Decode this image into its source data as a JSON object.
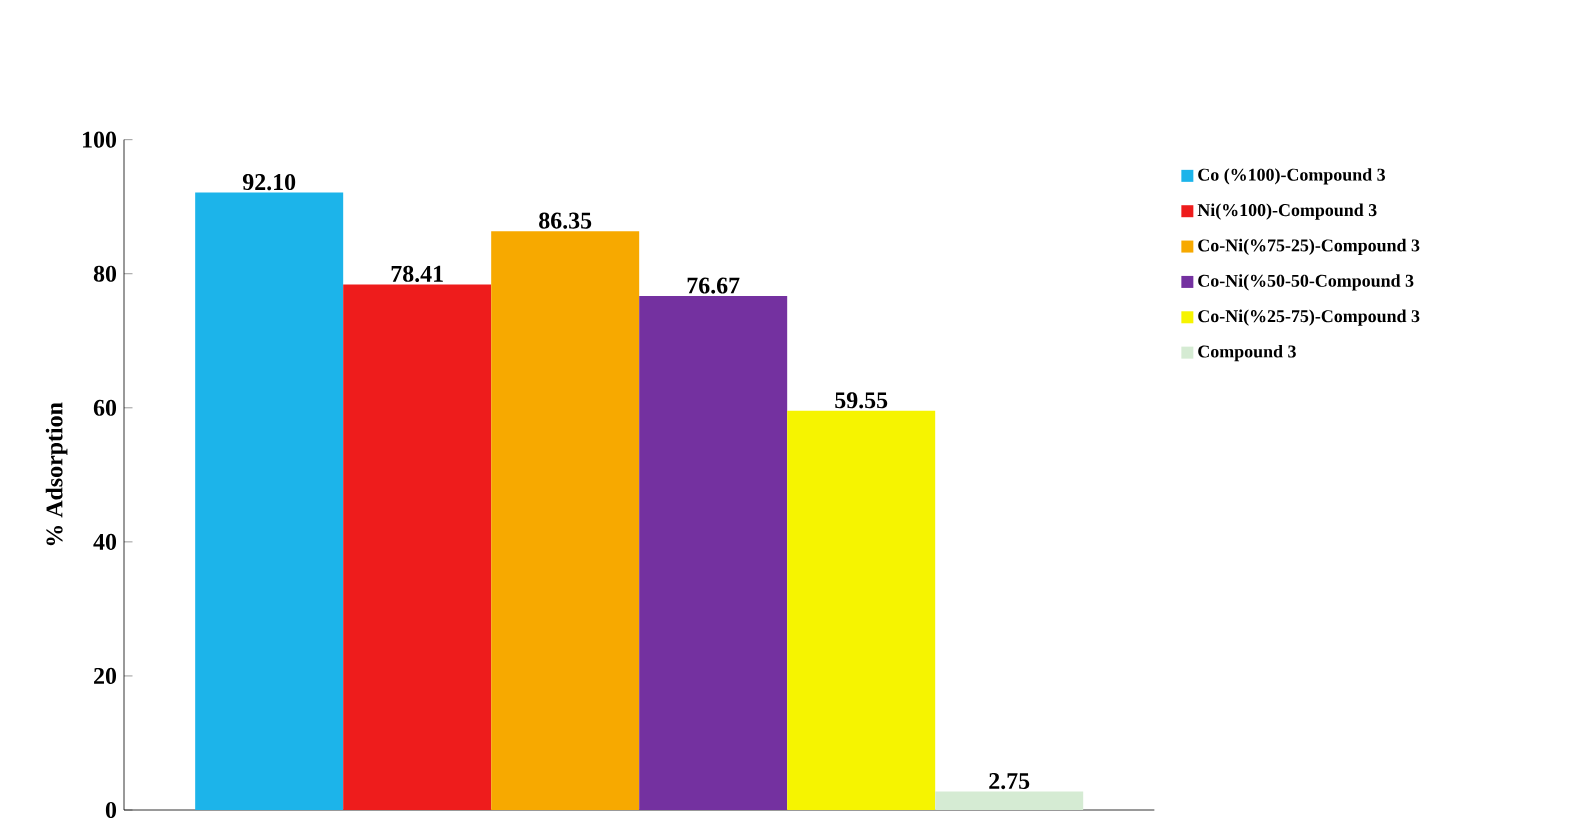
{
  "chart_data": {
    "type": "bar",
    "ylabel": "% Adsorption",
    "categories": [
      null
    ],
    "series": [
      {
        "name": "Co (%100)-Compound 3",
        "color": "#1cb4ea",
        "values": [
          92.1
        ],
        "value_labels": [
          "92.10"
        ]
      },
      {
        "name": "Ni(%100)-Compound 3",
        "color": "#ee1c1c",
        "values": [
          78.41
        ],
        "value_labels": [
          "78.41"
        ]
      },
      {
        "name": "Co-Ni(%75-25)-Compound 3",
        "color": "#f7a900",
        "values": [
          86.35
        ],
        "value_labels": [
          "86.35"
        ]
      },
      {
        "name": "Co-Ni(%50-50-Compound 3",
        "color": "#7431a0",
        "values": [
          76.67
        ],
        "value_labels": [
          "76.67"
        ]
      },
      {
        "name": "Co-Ni(%25-75)-Compound 3",
        "color": "#f6f400",
        "values": [
          59.55
        ],
        "value_labels": [
          "59.55"
        ]
      },
      {
        "name": "Compound 3",
        "color": "#d5ebd3",
        "values": [
          2.75
        ],
        "value_labels": [
          "2.75"
        ]
      }
    ],
    "ylim": [
      0,
      100
    ],
    "yticks": [
      0,
      20,
      40,
      60,
      80,
      100
    ],
    "grid": false,
    "legend": "right",
    "tick_labels": "y"
  }
}
